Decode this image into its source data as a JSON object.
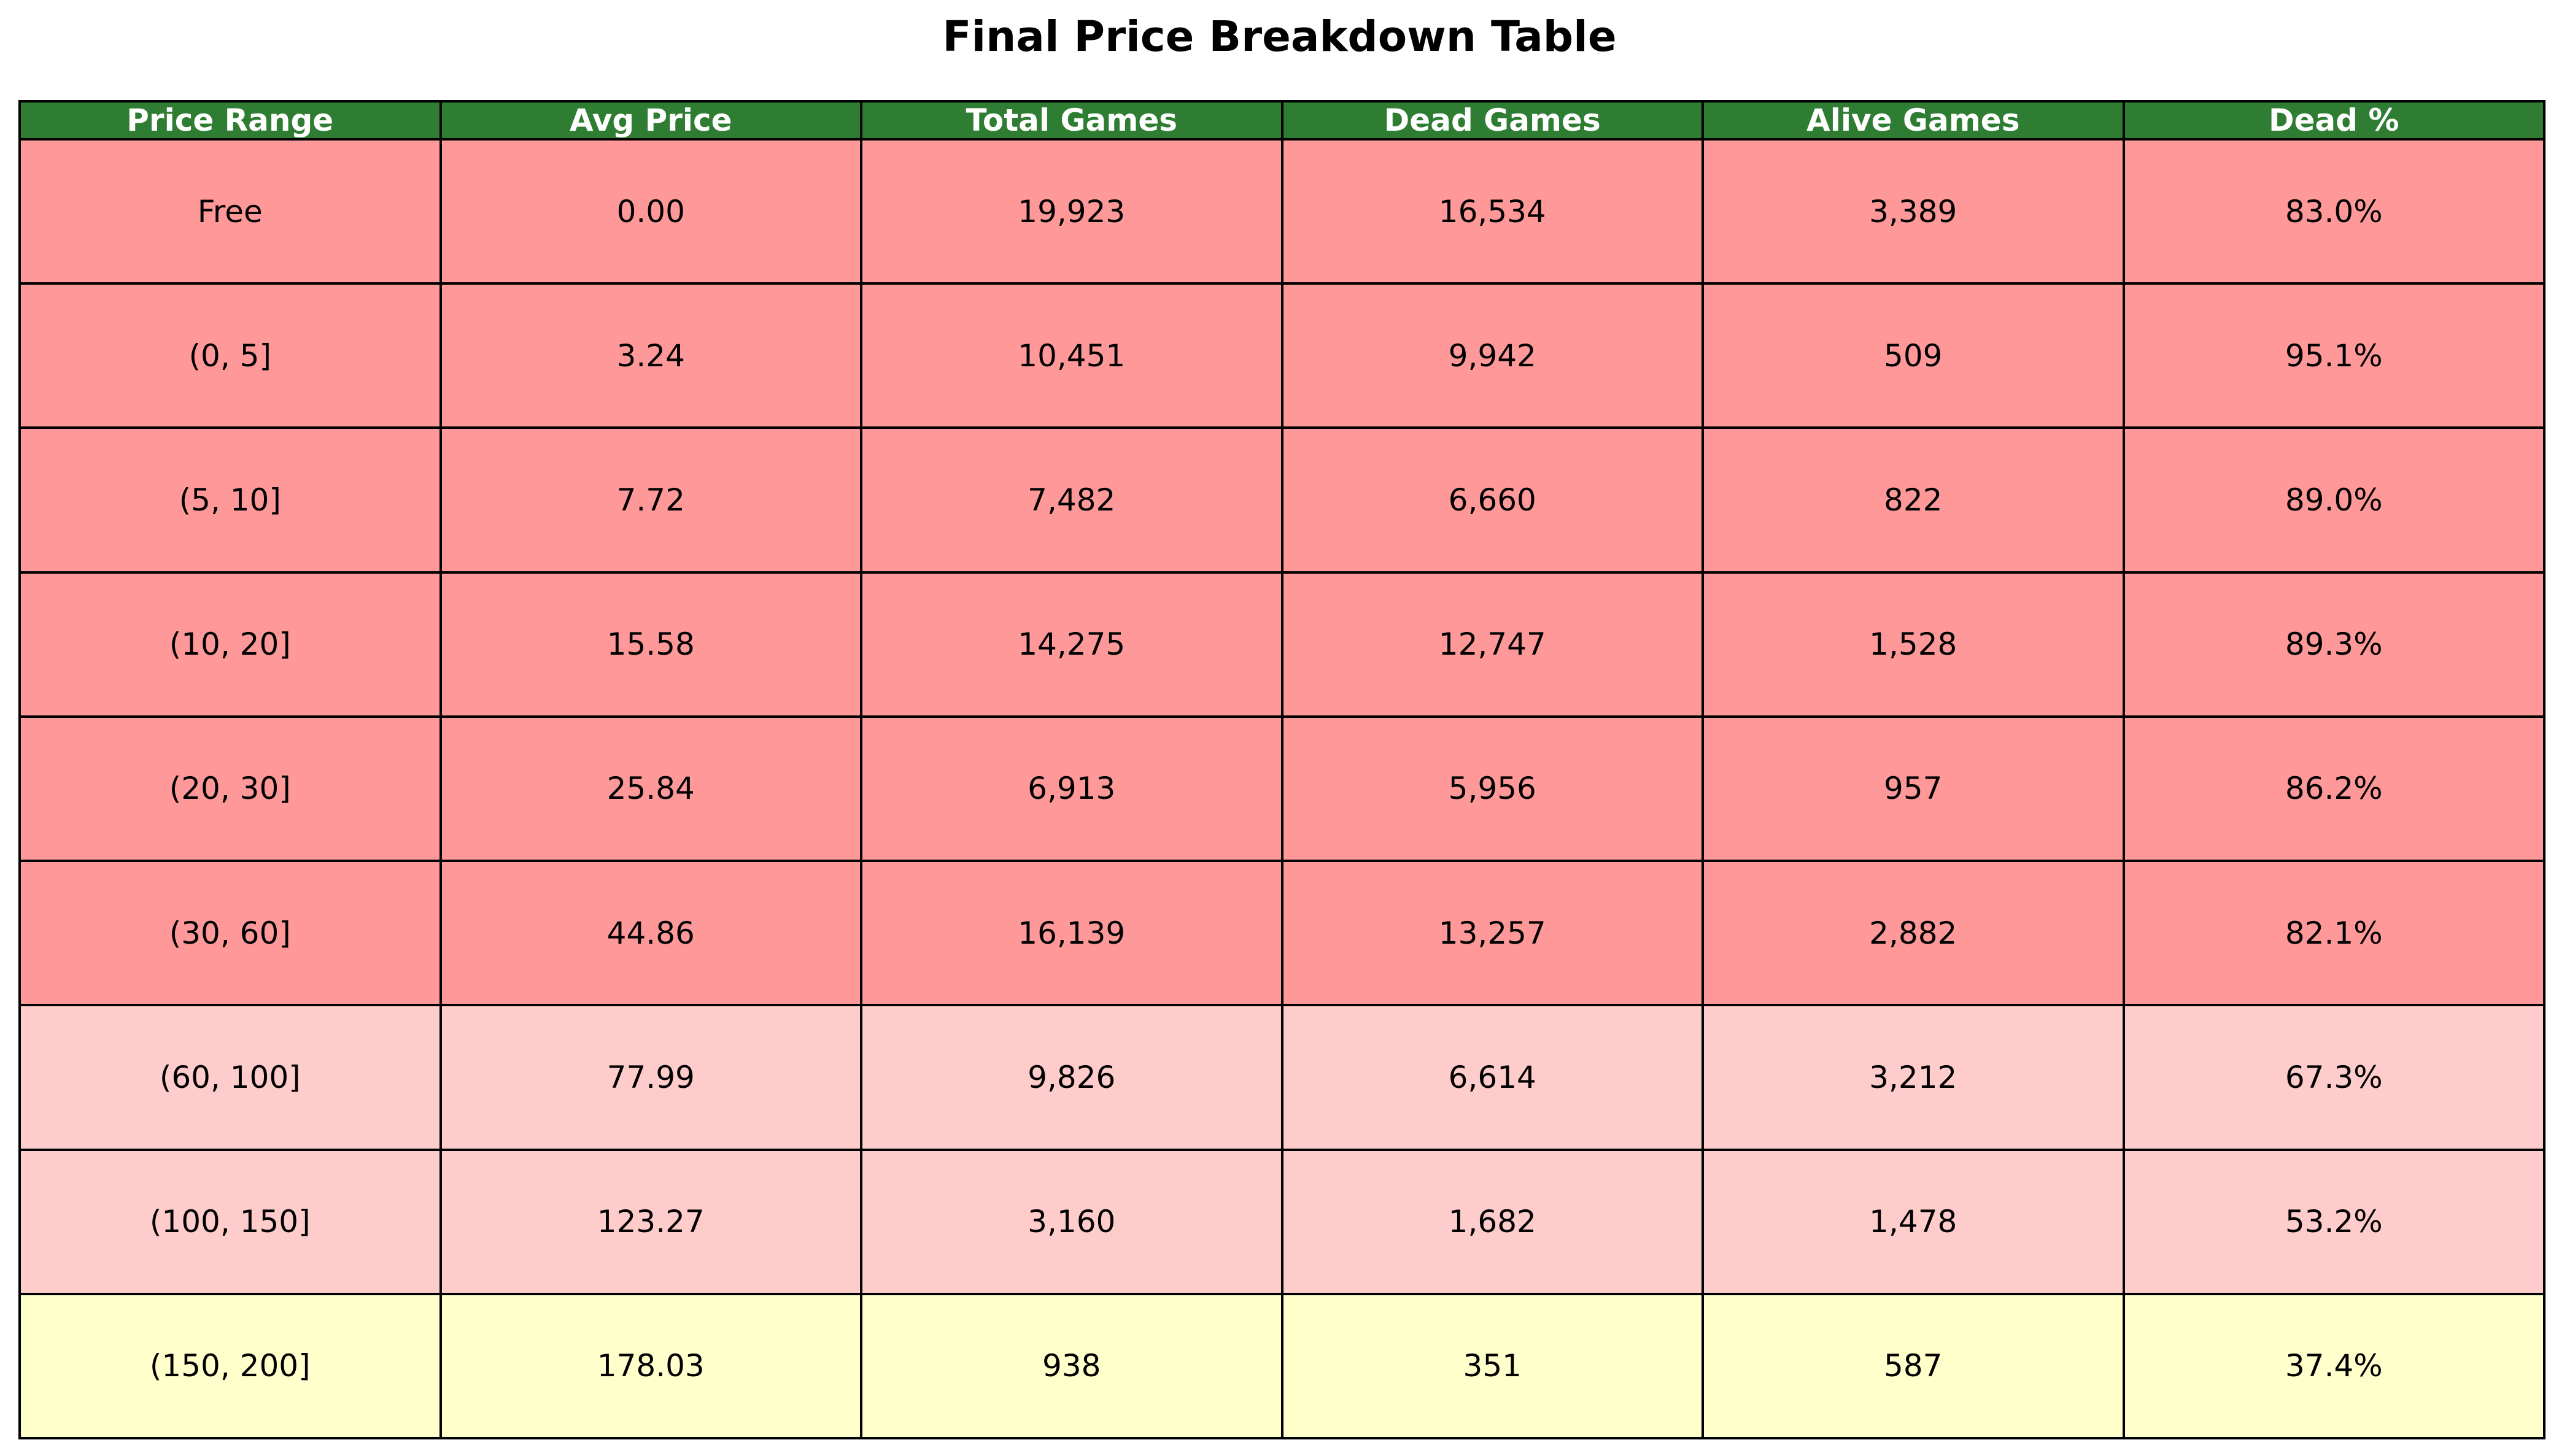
{
  "chart_data": {
    "type": "table",
    "title": "Final Price Breakdown Table",
    "header_color": "#2e7d32",
    "columns": [
      "Price Range",
      "Avg Price",
      "Total Games",
      "Dead Games",
      "Alive Games",
      "Dead %"
    ],
    "rows": [
      {
        "cells": [
          "Free",
          "0.00",
          "19,923",
          "16,534",
          "3,389",
          "83.0%"
        ],
        "color": "#ff9999"
      },
      {
        "cells": [
          "(0, 5]",
          "3.24",
          "10,451",
          "9,942",
          "509",
          "95.1%"
        ],
        "color": "#ff9999"
      },
      {
        "cells": [
          "(5, 10]",
          "7.72",
          "7,482",
          "6,660",
          "822",
          "89.0%"
        ],
        "color": "#ff9999"
      },
      {
        "cells": [
          "(10, 20]",
          "15.58",
          "14,275",
          "12,747",
          "1,528",
          "89.3%"
        ],
        "color": "#ff9999"
      },
      {
        "cells": [
          "(20, 30]",
          "25.84",
          "6,913",
          "5,956",
          "957",
          "86.2%"
        ],
        "color": "#ff9999"
      },
      {
        "cells": [
          "(30, 60]",
          "44.86",
          "16,139",
          "13,257",
          "2,882",
          "82.1%"
        ],
        "color": "#ff9999"
      },
      {
        "cells": [
          "(60, 100]",
          "77.99",
          "9,826",
          "6,614",
          "3,212",
          "67.3%"
        ],
        "color": "#ffcccc"
      },
      {
        "cells": [
          "(100, 150]",
          "123.27",
          "3,160",
          "1,682",
          "1,478",
          "53.2%"
        ],
        "color": "#ffcccc"
      },
      {
        "cells": [
          "(150, 200]",
          "178.03",
          "938",
          "351",
          "587",
          "37.4%"
        ],
        "color": "#ffffcc"
      }
    ]
  }
}
